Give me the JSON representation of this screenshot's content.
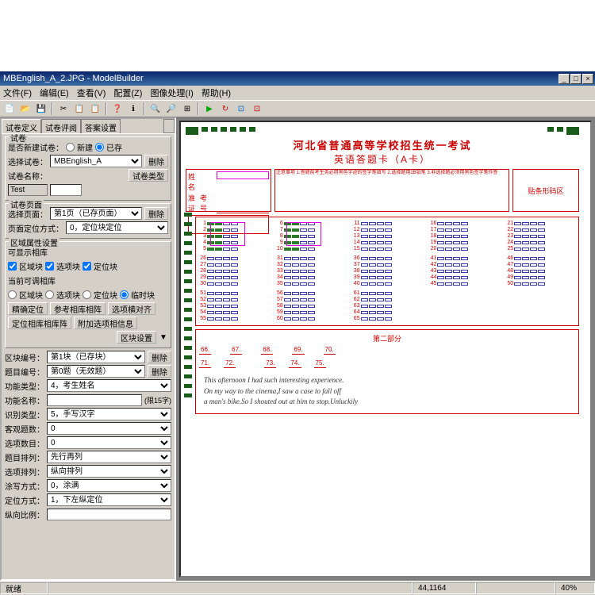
{
  "window": {
    "title": "MBEnglish_A_2.JPG - ModelBuilder"
  },
  "winbtns": {
    "min": "_",
    "max": "□",
    "close": "×"
  },
  "menu": {
    "file": "文件(F)",
    "edit": "编辑(E)",
    "view": "查看(V)",
    "config": "配置(Z)",
    "image": "图像处理(I)",
    "help": "帮助(H)"
  },
  "toolbar_icons": [
    "📄",
    "📂",
    "💾",
    "|",
    "✂",
    "📋",
    "📋",
    "|",
    "❓",
    "ℹ",
    "|",
    "🔍",
    "🔍",
    "⊞",
    "|",
    "▶",
    "↻",
    "⊡",
    "⊡"
  ],
  "tabs": {
    "t1": "试卷定义",
    "t2": "试卷评阅",
    "t3": "答案设置"
  },
  "g1": {
    "title": "试卷",
    "new_label": "是否新建试卷：",
    "opt_new": "新建",
    "opt_exist": "已存",
    "select_label": "选择试卷：",
    "select_val": "MBEnglish_A",
    "del": "删除",
    "name_label": "试卷名称：",
    "type": "试卷类型",
    "test_label": "Test",
    "test_val": ""
  },
  "g2": {
    "title": "试卷页面",
    "page_label": "选择页面：",
    "page_val": "第1页（已存页面）",
    "del": "删除",
    "loc_label": "页面定位方式：",
    "loc_val": "0，定位块定位"
  },
  "g3": {
    "title": "区域属性设置",
    "show_label": "可显示相库",
    "c1": "区域块",
    "c2": "选项块",
    "c3": "定位块",
    "adj_label": "当前可调相库",
    "r1": "区域块",
    "r2": "选项块",
    "r3": "定位块",
    "r4": "临时块",
    "b1": "精确定位",
    "b2": "参考相库相阵",
    "b3": "选项横对齐",
    "b4": "定位相库相库阵",
    "b5": "附加选项相信息",
    "set_label": "区块设置"
  },
  "fields": {
    "f1_l": "区块编号：",
    "f1_v": "第1块（已存块）",
    "f1_b": "删除",
    "f2_l": "题目编号：",
    "f2_v": "第0题（无效题）",
    "f2_b": "删除",
    "f3_l": "功能类型：",
    "f3_v": "4，考生姓名",
    "f4_l": "功能名称：",
    "f4_n": "(限15字)",
    "f5_l": "识别类型：",
    "f5_v": "5，手写汉字",
    "f6_l": "客观题数：",
    "f6_v": "0",
    "f7_l": "选项数目：",
    "f7_v": "0",
    "f8_l": "题目排列：",
    "f8_v": "先行再列",
    "f9_l": "选项排列：",
    "f9_v": "纵向排列",
    "f10_l": "涂写方式：",
    "f10_v": "0，涂满",
    "f11_l": "定位方式：",
    "f11_v": "1，下左纵定位",
    "f12_l": "纵向比例："
  },
  "sheet": {
    "title": "河北省普通高等学校招生统一考试",
    "subtitle": "英语答题卡（A卡）",
    "name": "姓　名",
    "id": "准考证号",
    "stamp": "贴条形码区",
    "essay_title": "第二部分",
    "essay_nums": [
      "66.",
      "67.",
      "68.",
      "69.",
      "70."
    ],
    "essay_nums2": [
      "71.",
      "72.",
      "",
      "73.",
      "74.",
      "75."
    ],
    "text1": "This afternoon I had such interesting experience.",
    "text2": "On my way to the cinema,I saw a case to fall off",
    "text3": "a man's bike.So I shouted out at him to stop.Unluckily"
  },
  "bubbles": {
    "block1": [
      1,
      2,
      3,
      4,
      5
    ],
    "block2": [
      6,
      7,
      8,
      9,
      10
    ],
    "block3": [
      11,
      12,
      13,
      14,
      15
    ],
    "block4": [
      16,
      17,
      18,
      19,
      20
    ],
    "block5": [
      21,
      22,
      23,
      24,
      25
    ],
    "block6": [
      26,
      27,
      28,
      29,
      30
    ],
    "block7": [
      31,
      32,
      33,
      34,
      35
    ],
    "block8": [
      36,
      37,
      38,
      39,
      40
    ],
    "block9": [
      41,
      42,
      43,
      44,
      45
    ],
    "block10": [
      46,
      47,
      48,
      49,
      50
    ],
    "block11": [
      51,
      52,
      53,
      54,
      55
    ],
    "block12": [
      56,
      57,
      58,
      59,
      60
    ],
    "block13": [
      61,
      62,
      63,
      64,
      65
    ]
  },
  "status": {
    "ready": "就绪",
    "coords": "44,1164",
    "zoom": "40%"
  },
  "colors": {
    "titlebar": "#0a246a",
    "face": "#d4d0c8",
    "red": "#c00000",
    "bubble": "#3838a8",
    "fill": "#2a7a2a",
    "sel": "#e000e0"
  }
}
